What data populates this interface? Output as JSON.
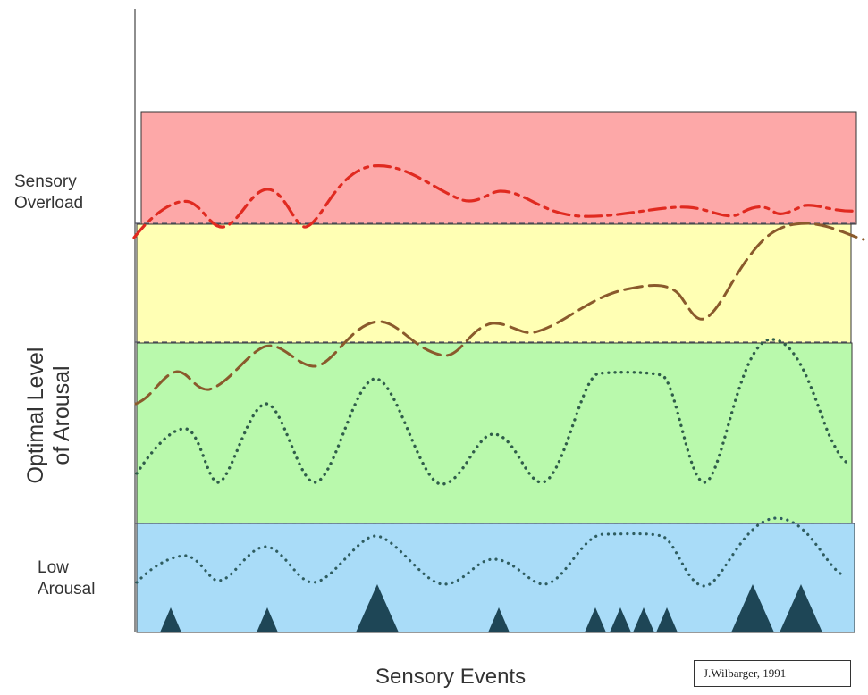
{
  "diagram": {
    "zones": [
      {
        "id": "overload",
        "label": "Sensory\nOverload",
        "color": "#fda8a8"
      },
      {
        "id": "upper",
        "label": "",
        "color": "#ffffb4"
      },
      {
        "id": "optimal",
        "label": "Optimal Level\nof Arousal",
        "color": "#b9f9ac"
      },
      {
        "id": "low",
        "label": "Low\nArousal",
        "color": "#a9dcf8"
      }
    ],
    "x_axis_label": "Sensory Events",
    "credit": "J.Wilbarger, 1991",
    "lines": [
      {
        "name": "red-dashdot",
        "color": "#e02a20",
        "style": "dash-dot"
      },
      {
        "name": "brown-dash",
        "color": "#8a5a2c",
        "style": "long-dash"
      },
      {
        "name": "dotted-optimal",
        "color": "#2f5d4a",
        "style": "dotted"
      },
      {
        "name": "dotted-low",
        "color": "#2f5d60",
        "style": "dotted"
      }
    ],
    "event_marker_color": "#1e4656"
  }
}
